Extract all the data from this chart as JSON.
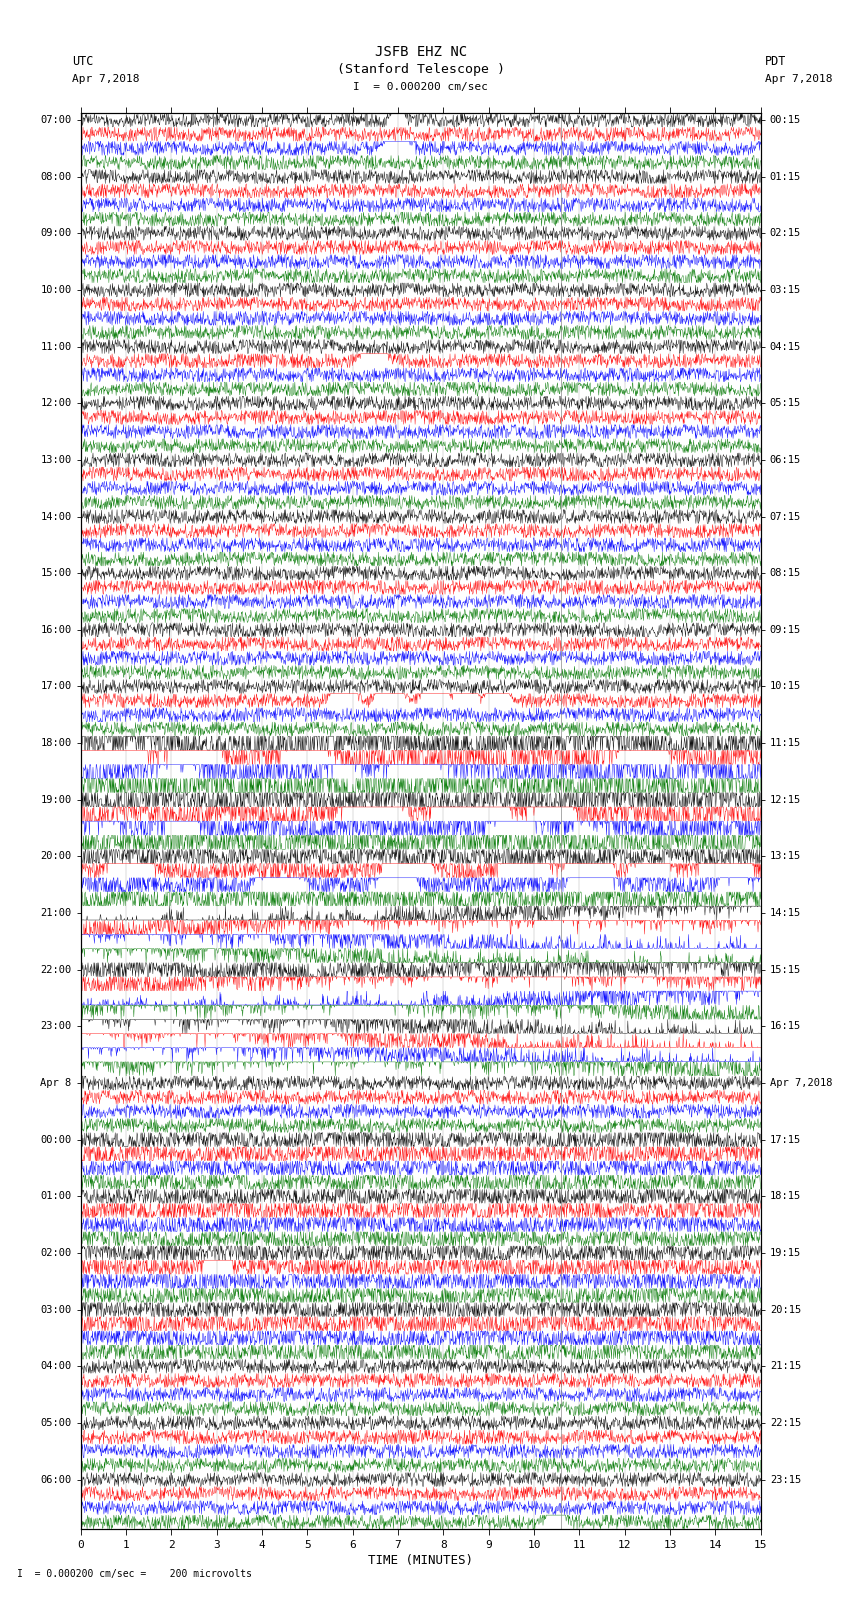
{
  "title_line1": "JSFB EHZ NC",
  "title_line2": "(Stanford Telescope )",
  "scale_text": "I  = 0.000200 cm/sec",
  "bottom_scale_text": "I  = 0.000200 cm/sec =    200 microvolts",
  "utc_label": "UTC",
  "pdt_label": "PDT",
  "utc_date": "Apr 7,2018",
  "pdt_date": "Apr 7,2018",
  "xlabel": "TIME (MINUTES)",
  "xlim": [
    0,
    15
  ],
  "xticks": [
    0,
    1,
    2,
    3,
    4,
    5,
    6,
    7,
    8,
    9,
    10,
    11,
    12,
    13,
    14,
    15
  ],
  "bg_color": "#ffffff",
  "trace_colors": [
    "#000000",
    "#ff0000",
    "#0000ff",
    "#007700"
  ],
  "utc_times": [
    "07:00",
    "08:00",
    "09:00",
    "10:00",
    "11:00",
    "12:00",
    "13:00",
    "14:00",
    "15:00",
    "16:00",
    "17:00",
    "18:00",
    "19:00",
    "20:00",
    "21:00",
    "22:00",
    "23:00",
    "Apr 8",
    "00:00",
    "01:00",
    "02:00",
    "03:00",
    "04:00",
    "05:00",
    "06:00"
  ],
  "pdt_times": [
    "00:15",
    "01:15",
    "02:15",
    "03:15",
    "04:15",
    "05:15",
    "06:15",
    "07:15",
    "08:15",
    "09:15",
    "10:15",
    "11:15",
    "12:15",
    "13:15",
    "14:15",
    "15:15",
    "16:15",
    "Apr 7,2018",
    "17:15",
    "18:15",
    "19:15",
    "20:15",
    "21:15",
    "22:15",
    "23:15"
  ],
  "n_hour_groups": 25,
  "traces_per_group": 4,
  "seed": 42,
  "fig_width": 8.5,
  "fig_height": 16.13,
  "dpi": 100,
  "vertical_line_x": 10.6,
  "grid_x_positions": [
    1,
    2,
    3,
    4,
    5,
    6,
    7,
    8,
    9,
    10,
    11,
    12,
    13,
    14
  ]
}
